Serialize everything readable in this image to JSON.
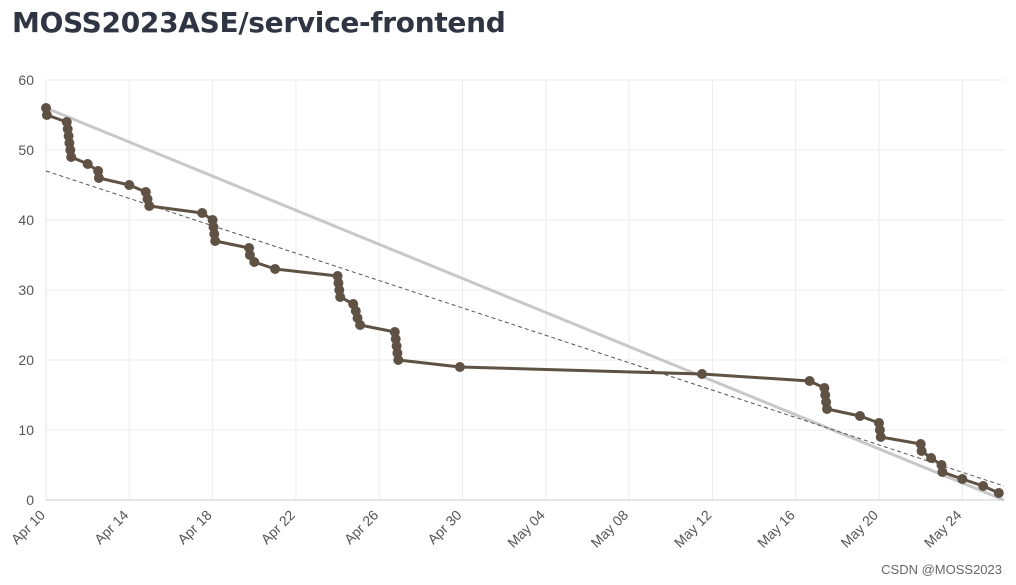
{
  "header": {
    "title": "MOSS2023ASE/service-frontend"
  },
  "watermark": "CSDN @MOSS2023",
  "colors": {
    "actual": "#5f5244",
    "ideal": "#c8c8c8",
    "trend": "#555555",
    "grid": "#ececec"
  },
  "chart_data": {
    "type": "line",
    "title": "MOSS2023ASE/service-frontend",
    "xlabel": "",
    "ylabel": "",
    "x_axis": {
      "type": "date",
      "range": [
        "2023-04-10",
        "2023-05-26"
      ],
      "tick_labels": [
        "Apr 10",
        "Apr 14",
        "Apr 18",
        "Apr 22",
        "Apr 26",
        "Apr 30",
        "May 04",
        "May 08",
        "May 12",
        "May 16",
        "May 20",
        "May 24"
      ],
      "tick_dates": [
        "2023-04-10",
        "2023-04-14",
        "2023-04-18",
        "2023-04-22",
        "2023-04-26",
        "2023-04-30",
        "2023-05-04",
        "2023-05-08",
        "2023-05-12",
        "2023-05-16",
        "2023-05-20",
        "2023-05-24"
      ]
    },
    "y_axis": {
      "range": [
        0,
        60
      ],
      "ticks": [
        0,
        10,
        20,
        30,
        40,
        50,
        60
      ]
    },
    "grid": true,
    "series": [
      {
        "style": "actual",
        "points": [
          [
            "2023-04-10T00:00",
            56
          ],
          [
            "2023-04-10T01:00",
            55
          ],
          [
            "2023-04-11T00:00",
            54
          ],
          [
            "2023-04-11T01:00",
            53
          ],
          [
            "2023-04-11T02:00",
            52
          ],
          [
            "2023-04-11T03:00",
            51
          ],
          [
            "2023-04-11T04:00",
            50
          ],
          [
            "2023-04-11T05:00",
            49
          ],
          [
            "2023-04-12T00:00",
            48
          ],
          [
            "2023-04-12T12:00",
            47
          ],
          [
            "2023-04-12T13:00",
            46
          ],
          [
            "2023-04-14T00:00",
            45
          ],
          [
            "2023-04-14T19:00",
            44
          ],
          [
            "2023-04-14T21:00",
            43
          ],
          [
            "2023-04-14T23:00",
            42
          ],
          [
            "2023-04-17T12:00",
            41
          ],
          [
            "2023-04-18T00:00",
            40
          ],
          [
            "2023-04-18T01:00",
            39
          ],
          [
            "2023-04-18T02:00",
            38
          ],
          [
            "2023-04-18T03:00",
            37
          ],
          [
            "2023-04-19T18:00",
            36
          ],
          [
            "2023-04-19T19:00",
            35
          ],
          [
            "2023-04-20T00:00",
            34
          ],
          [
            "2023-04-21T00:00",
            33
          ],
          [
            "2023-04-24T00:00",
            32
          ],
          [
            "2023-04-24T01:00",
            31
          ],
          [
            "2023-04-24T02:00",
            30
          ],
          [
            "2023-04-24T03:00",
            29
          ],
          [
            "2023-04-24T18:00",
            28
          ],
          [
            "2023-04-24T21:00",
            27
          ],
          [
            "2023-04-24T23:00",
            26
          ],
          [
            "2023-04-25T02:00",
            25
          ],
          [
            "2023-04-26T18:00",
            24
          ],
          [
            "2023-04-26T19:00",
            23
          ],
          [
            "2023-04-26T20:00",
            22
          ],
          [
            "2023-04-26T21:00",
            21
          ],
          [
            "2023-04-26T22:00",
            20
          ],
          [
            "2023-04-29T21:00",
            19
          ],
          [
            "2023-05-11T12:00",
            18
          ],
          [
            "2023-05-16T16:00",
            17
          ],
          [
            "2023-05-17T09:00",
            16
          ],
          [
            "2023-05-17T10:00",
            15
          ],
          [
            "2023-05-17T11:00",
            14
          ],
          [
            "2023-05-17T12:00",
            13
          ],
          [
            "2023-05-19T02:00",
            12
          ],
          [
            "2023-05-20T00:00",
            11
          ],
          [
            "2023-05-20T01:00",
            10
          ],
          [
            "2023-05-20T02:00",
            9
          ],
          [
            "2023-05-22T00:00",
            8
          ],
          [
            "2023-05-22T01:00",
            7
          ],
          [
            "2023-05-22T12:00",
            6
          ],
          [
            "2023-05-23T00:00",
            5
          ],
          [
            "2023-05-23T01:00",
            4
          ],
          [
            "2023-05-24T00:00",
            3
          ],
          [
            "2023-05-25T00:00",
            2
          ],
          [
            "2023-05-25T18:00",
            1
          ]
        ]
      },
      {
        "style": "ideal",
        "points": [
          [
            "2023-04-10T00:00",
            56
          ],
          [
            "2023-05-26T00:00",
            0
          ]
        ]
      },
      {
        "style": "trend",
        "points": [
          [
            "2023-04-10T00:00",
            47
          ],
          [
            "2023-05-26T00:00",
            2
          ]
        ]
      }
    ]
  }
}
